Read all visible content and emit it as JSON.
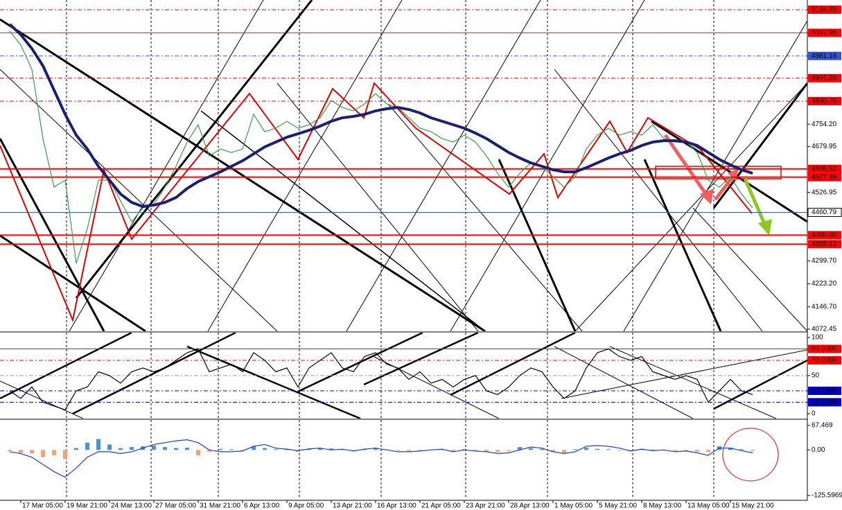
{
  "chart_data": [
    {
      "type": "line",
      "categories": [
        null,
        "17 Mar 05:00",
        null,
        null,
        null,
        "19 Mar 21:00",
        null,
        null,
        null,
        "24 Mar 13:00",
        null,
        null,
        null,
        "27 Mar 05:00",
        null,
        null,
        null,
        "31 Mar 21:00",
        null,
        null,
        null,
        "6 Apr 13:00",
        null,
        null,
        null,
        "9 Apr 05:00",
        null,
        null,
        null,
        "13 Apr 21:00",
        null,
        null,
        null,
        "16 Apr 13:00",
        null,
        null,
        null,
        "21 Apr 05:00",
        null,
        null,
        null,
        "23 Apr 21:00",
        null,
        null,
        null,
        "28 Apr 13:00",
        null,
        null,
        null,
        "1 May 05:00",
        null,
        null,
        null,
        "5 May 21:00",
        null,
        null,
        null,
        "8 May 13:00",
        null,
        null,
        null,
        "13 May 05:00",
        null,
        null,
        null,
        "15 May 21:00",
        null,
        null
      ],
      "series": [
        {
          "color": "#3a9a4a",
          "values": [
            5063.5,
            5017.4,
            4936.7,
            4706.2,
            4544.8,
            4567.9,
            4291.3,
            4406.6,
            4567.9,
            4567.9,
            4498.8,
            4429.6,
            4475.7,
            4487.2,
            4544.8,
            4614.0,
            4694.7,
            4752.3,
            4648.6,
            4671.6,
            4660.1,
            4671.6,
            4786.9,
            4729.2,
            4740.8,
            4763.8,
            4740.8,
            4752.3,
            4775.4,
            4833.0,
            4809.9,
            4798.4,
            4821.5,
            4856.0,
            4821.5,
            4809.9,
            4775.4,
            4740.8,
            4729.2,
            4706.2,
            4694.7,
            4717.7,
            4694.7,
            4648.6,
            4590.9,
            4544.8,
            4590.9,
            4625.5,
            4614.0,
            4579.4,
            4544.8,
            4579.4,
            4671.6,
            4717.7,
            4740.8,
            4717.7,
            4729.2,
            4717.7,
            4752.3,
            4706.2,
            4694.7,
            4694.7,
            4660.1,
            4567.9,
            4544.8,
            4579.4,
            4521.8,
            4475.7
          ]
        },
        {
          "color": "#1a1f6e",
          "values": [
            5086.5,
            5051.9,
            5005.8,
            4948.2,
            4867.6,
            4786.9,
            4717.7,
            4671.6,
            4614.0,
            4567.9,
            4521.8,
            4494.1,
            4480.3,
            4484.9,
            4494.1,
            4510.3,
            4540.2,
            4563.3,
            4579.4,
            4595.6,
            4614.0,
            4632.4,
            4655.5,
            4678.5,
            4694.7,
            4710.8,
            4722.3,
            4733.9,
            4747.7,
            4763.8,
            4775.4,
            4780.0,
            4786.9,
            4798.4,
            4805.3,
            4809.9,
            4803.0,
            4791.5,
            4775.4,
            4763.8,
            4752.3,
            4740.8,
            4724.6,
            4706.2,
            4683.2,
            4660.1,
            4641.7,
            4625.5,
            4614.0,
            4602.5,
            4595.6,
            4595.6,
            4609.4,
            4625.5,
            4641.7,
            4655.5,
            4667.0,
            4683.2,
            4694.7,
            4699.3,
            4699.3,
            4694.7,
            4683.2,
            4660.1,
            4637.1,
            4618.6,
            4602.5,
            4590.9
          ]
        }
      ],
      "ylim": [
        4065.5,
        5167.2
      ],
      "yticks": [
        5134.95,
        5057.95,
        4981.16,
        {
          "value": 4907.2,
          "label": "4907.20"
        },
        {
          "value": 4830.7,
          "label": "4830.70"
        },
        {
          "value": 4754.2,
          "label": "4754.20"
        },
        4679.95,
        4526.95,
        {
          "value": 4299.7,
          "label": "4299.70"
        },
        {
          "value": 4223.2,
          "label": "4223.20"
        },
        {
          "value": 4146.7,
          "label": "4146.70"
        },
        4072.45
      ],
      "levels": [
        4605.52,
        4577.95,
        4460.79,
        {
          "value": 4385,
          "label": "4385.00"
        },
        4355.13
      ],
      "level_colors": [
        "#ff0000",
        "#ff0000",
        "#3355cc",
        "#ff0000",
        "#ff0000"
      ]
    },
    {
      "type": "line",
      "series": [
        {
          "color": "#000000",
          "values": [
            30,
            20,
            35,
            15,
            10,
            5,
            30,
            35,
            55,
            50,
            40,
            55,
            60,
            55,
            60,
            70,
            80,
            85,
            55,
            60,
            65,
            55,
            80,
            70,
            55,
            60,
            35,
            60,
            70,
            80,
            60,
            55,
            75,
            80,
            65,
            60,
            45,
            55,
            40,
            45,
            35,
            45,
            50,
            30,
            25,
            35,
            50,
            60,
            55,
            35,
            20,
            30,
            60,
            80,
            85,
            75,
            70,
            75,
            55,
            50,
            45,
            50,
            45,
            15,
            30,
            45,
            30,
            25
          ]
        }
      ],
      "ylim": [
        -6.4,
        106.4
      ],
      "yticks": [
        100,
        {
          "value": 85,
          "label": "85.0000"
        },
        {
          "value": 70,
          "label": "70.0000"
        },
        50,
        {
          "value": 30,
          "label": "30.0000"
        },
        {
          "value": 15,
          "label": "15.0000"
        },
        0
      ],
      "level_colors": [
        null,
        "#ff0000",
        "#ff0000",
        "#999999",
        "#0000cc",
        "#0000cc",
        null
      ]
    },
    {
      "type": "bar",
      "series": [
        {
          "color": "#4a8fe0",
          "negative_color": "#f4a07a",
          "values": [
            -3,
            -8,
            -10,
            -20,
            -15,
            -25,
            5,
            20,
            30,
            15,
            5,
            8,
            10,
            12,
            8,
            5,
            6,
            -15,
            -5,
            3,
            2,
            -2,
            10,
            5,
            2,
            3,
            -5,
            2,
            5,
            4,
            2,
            -2,
            3,
            5,
            1,
            -2,
            -3,
            -2,
            1,
            2,
            -4,
            2,
            -3,
            -5,
            -6,
            -3,
            8,
            5,
            3,
            -6,
            -8,
            2,
            6,
            3,
            2,
            -2,
            -3,
            3,
            1,
            -2,
            -3,
            -2,
            -5,
            -6,
            10,
            6,
            2,
            -3
          ]
        },
        {
          "type": "line",
          "color": "#1a3bd0",
          "values": [
            -5,
            -10,
            -20,
            -40,
            -60,
            -75,
            -50,
            -20,
            -5,
            -5,
            -10,
            -5,
            5,
            15,
            20,
            25,
            28,
            20,
            0,
            -5,
            -5,
            -3,
            10,
            15,
            5,
            2,
            -2,
            3,
            5,
            0,
            2,
            -3,
            2,
            5,
            0,
            -5,
            -5,
            -3,
            0,
            2,
            -5,
            0,
            -3,
            -5,
            -10,
            -8,
            0,
            8,
            5,
            -5,
            -10,
            -5,
            10,
            12,
            10,
            5,
            -3,
            2,
            -2,
            0,
            -5,
            -3,
            -8,
            -15,
            5,
            5,
            -2,
            -8
          ]
        }
      ],
      "ylim": [
        -138.98,
        82.76
      ],
      "yticks": [
        67.469,
        {
          "value": 0,
          "label": "0.00"
        },
        -125.5969
      ]
    }
  ]
}
